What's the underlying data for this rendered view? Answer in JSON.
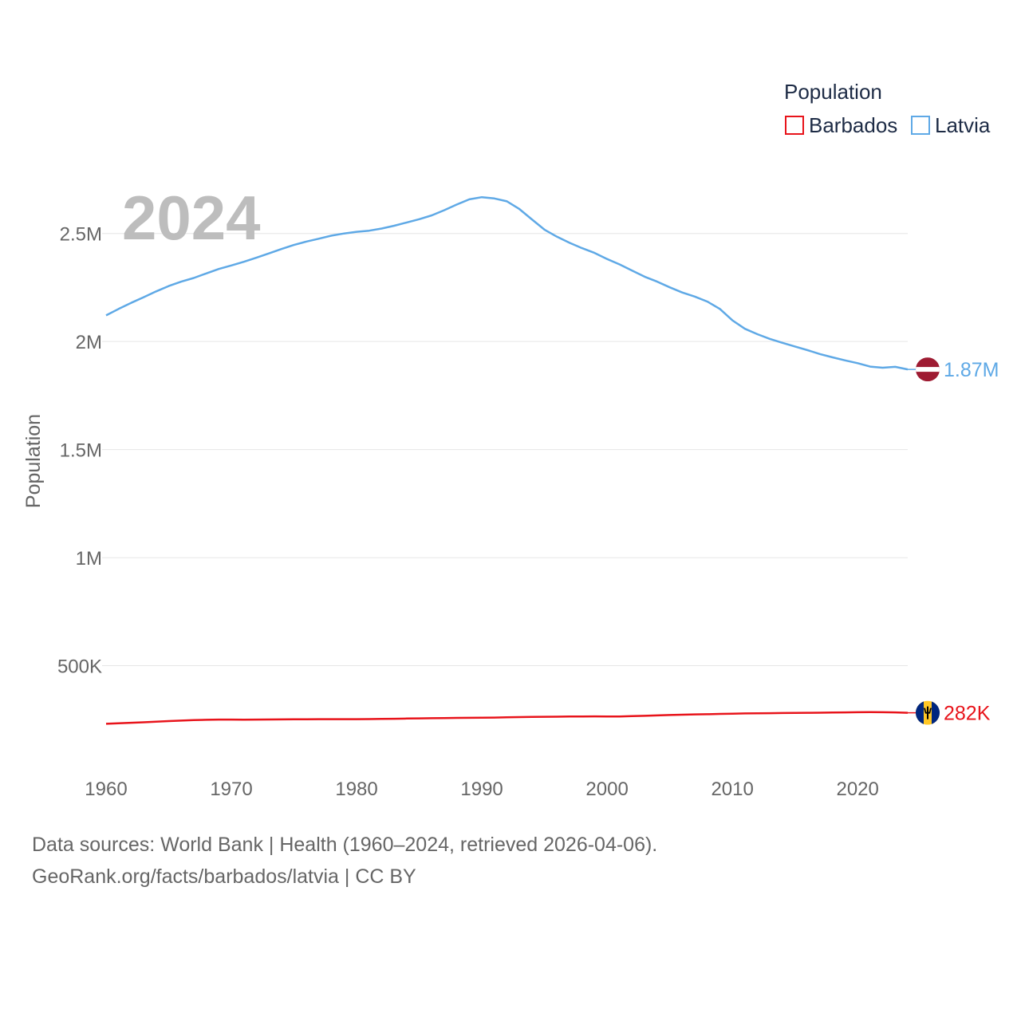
{
  "chart_data": {
    "type": "line",
    "title": "",
    "current_year_label": "2024",
    "xlabel": "",
    "ylabel": "Population",
    "xlim": [
      1960,
      2024
    ],
    "ylim": [
      0,
      2750000
    ],
    "x_ticks": [
      1960,
      1970,
      1980,
      1990,
      2000,
      2010,
      2020
    ],
    "y_ticks": [
      {
        "value": 500000,
        "label": "500K"
      },
      {
        "value": 1000000,
        "label": "1M"
      },
      {
        "value": 1500000,
        "label": "1.5M"
      },
      {
        "value": 2000000,
        "label": "2M"
      },
      {
        "value": 2500000,
        "label": "2.5M"
      }
    ],
    "grid": true,
    "legend": {
      "title": "Population",
      "placement": "top-right"
    },
    "x": [
      1960,
      1961,
      1962,
      1963,
      1964,
      1965,
      1966,
      1967,
      1968,
      1969,
      1970,
      1971,
      1972,
      1973,
      1974,
      1975,
      1976,
      1977,
      1978,
      1979,
      1980,
      1981,
      1982,
      1983,
      1984,
      1985,
      1986,
      1987,
      1988,
      1989,
      1990,
      1991,
      1992,
      1993,
      1994,
      1995,
      1996,
      1997,
      1998,
      1999,
      2000,
      2001,
      2002,
      2003,
      2004,
      2005,
      2006,
      2007,
      2008,
      2009,
      2010,
      2011,
      2012,
      2013,
      2014,
      2015,
      2016,
      2017,
      2018,
      2019,
      2020,
      2021,
      2022,
      2023,
      2024
    ],
    "series": [
      {
        "name": "Barbados",
        "color": "#e8141b",
        "end_label": "282K",
        "flag": "barbados",
        "values": [
          231000,
          233500,
          236000,
          238000,
          241000,
          243500,
          246000,
          248000,
          249500,
          250500,
          250500,
          250000,
          250500,
          251000,
          251500,
          251800,
          252000,
          252300,
          252500,
          252300,
          252500,
          252800,
          253500,
          254500,
          255500,
          256300,
          257000,
          257800,
          258300,
          258800,
          259500,
          260000,
          261000,
          262000,
          263000,
          263500,
          264000,
          264500,
          265000,
          265500,
          265200,
          265000,
          266500,
          268000,
          270000,
          271500,
          273000,
          274500,
          275500,
          276800,
          278000,
          279000,
          279800,
          280300,
          281000,
          281500,
          282000,
          282500,
          283000,
          283800,
          284500,
          285000,
          284500,
          284000,
          282000
        ]
      },
      {
        "name": "Latvia",
        "color": "#5fa9e6",
        "end_label": "1.87M",
        "flag": "latvia",
        "values": [
          2121000,
          2151000,
          2179000,
          2205000,
          2232000,
          2257000,
          2277000,
          2294000,
          2315000,
          2336000,
          2352000,
          2369000,
          2388000,
          2408000,
          2428000,
          2447000,
          2463000,
          2476000,
          2490000,
          2500000,
          2508000,
          2513000,
          2523000,
          2536000,
          2551000,
          2566000,
          2584000,
          2608000,
          2634000,
          2658000,
          2668000,
          2662000,
          2649000,
          2613000,
          2565000,
          2518000,
          2485000,
          2457000,
          2432000,
          2410000,
          2382000,
          2357000,
          2328000,
          2300000,
          2277000,
          2251000,
          2227000,
          2208000,
          2185000,
          2151000,
          2098000,
          2059000,
          2034000,
          2012000,
          1994000,
          1977000,
          1960000,
          1942000,
          1927000,
          1913000,
          1900000,
          1884000,
          1879000,
          1883000,
          1871000
        ]
      }
    ]
  },
  "footer": {
    "line1": "Data sources: World Bank | Health (1960–2024, retrieved 2026-04-06).",
    "line2": "GeoRank.org/facts/barbados/latvia | CC BY"
  }
}
